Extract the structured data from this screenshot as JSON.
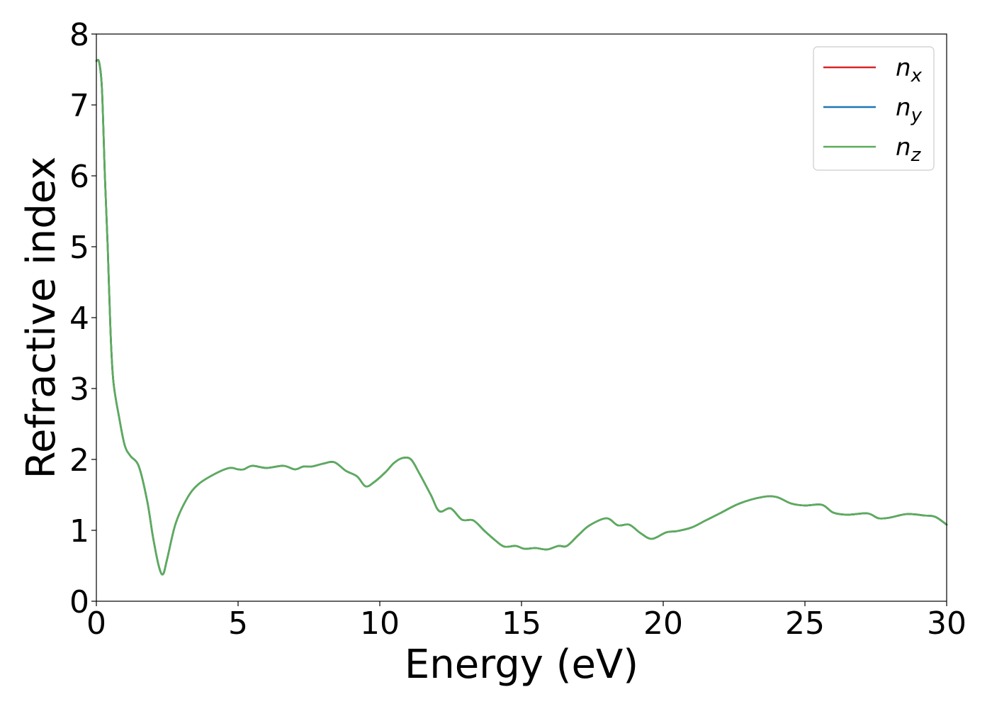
{
  "chart_data": {
    "type": "line",
    "title": "",
    "xlabel": "Energy (eV)",
    "ylabel": "Refractive index",
    "xlim": [
      0,
      30
    ],
    "ylim": [
      0,
      8
    ],
    "xticks": [
      "0",
      "5",
      "10",
      "15",
      "20",
      "25",
      "30"
    ],
    "yticks": [
      "0",
      "1",
      "2",
      "3",
      "4",
      "5",
      "6",
      "7",
      "8"
    ],
    "grid": false,
    "legend_position": "top-right",
    "legend": [
      {
        "base": "n",
        "sub": "x",
        "color": "#d62728"
      },
      {
        "base": "n",
        "sub": "y",
        "color": "#1f77b4"
      },
      {
        "base": "n",
        "sub": "z",
        "color": "#5aad5a"
      }
    ],
    "series": [
      {
        "sub": "x",
        "color": "#d62728",
        "points": [
          [
            0,
            7.62
          ],
          [
            0.1,
            7.6
          ],
          [
            0.2,
            7.2
          ],
          [
            0.3,
            6.0
          ],
          [
            0.4,
            5.0
          ],
          [
            0.5,
            3.8
          ],
          [
            0.6,
            3.1
          ],
          [
            0.8,
            2.6
          ],
          [
            1.0,
            2.2
          ],
          [
            1.2,
            2.05
          ],
          [
            1.5,
            1.9
          ],
          [
            1.8,
            1.4
          ],
          [
            2.0,
            0.9
          ],
          [
            2.2,
            0.5
          ],
          [
            2.35,
            0.38
          ],
          [
            2.5,
            0.6
          ],
          [
            2.8,
            1.1
          ],
          [
            3.2,
            1.45
          ],
          [
            3.6,
            1.65
          ],
          [
            4.2,
            1.8
          ],
          [
            4.7,
            1.88
          ],
          [
            5.0,
            1.86
          ],
          [
            5.2,
            1.86
          ],
          [
            5.5,
            1.91
          ],
          [
            6.0,
            1.88
          ],
          [
            6.6,
            1.91
          ],
          [
            7.0,
            1.86
          ],
          [
            7.3,
            1.9
          ],
          [
            7.6,
            1.9
          ],
          [
            8.0,
            1.94
          ],
          [
            8.4,
            1.96
          ],
          [
            8.8,
            1.84
          ],
          [
            9.2,
            1.76
          ],
          [
            9.5,
            1.62
          ],
          [
            9.8,
            1.68
          ],
          [
            10.2,
            1.82
          ],
          [
            10.5,
            1.95
          ],
          [
            10.8,
            2.02
          ],
          [
            11.1,
            2.0
          ],
          [
            11.4,
            1.8
          ],
          [
            11.8,
            1.5
          ],
          [
            12.1,
            1.27
          ],
          [
            12.5,
            1.31
          ],
          [
            12.9,
            1.15
          ],
          [
            13.3,
            1.14
          ],
          [
            13.7,
            0.99
          ],
          [
            14.1,
            0.85
          ],
          [
            14.4,
            0.77
          ],
          [
            14.8,
            0.78
          ],
          [
            15.1,
            0.74
          ],
          [
            15.5,
            0.75
          ],
          [
            15.9,
            0.73
          ],
          [
            16.3,
            0.78
          ],
          [
            16.6,
            0.78
          ],
          [
            17.0,
            0.93
          ],
          [
            17.4,
            1.07
          ],
          [
            18.0,
            1.17
          ],
          [
            18.4,
            1.07
          ],
          [
            18.8,
            1.08
          ],
          [
            19.2,
            0.96
          ],
          [
            19.6,
            0.88
          ],
          [
            20.1,
            0.97
          ],
          [
            20.5,
            0.99
          ],
          [
            21.0,
            1.04
          ],
          [
            21.5,
            1.14
          ],
          [
            22.0,
            1.24
          ],
          [
            22.7,
            1.38
          ],
          [
            23.5,
            1.47
          ],
          [
            24.0,
            1.47
          ],
          [
            24.5,
            1.38
          ],
          [
            25.0,
            1.35
          ],
          [
            25.6,
            1.36
          ],
          [
            26.0,
            1.25
          ],
          [
            26.5,
            1.22
          ],
          [
            27.2,
            1.24
          ],
          [
            27.6,
            1.17
          ],
          [
            28.0,
            1.18
          ],
          [
            28.6,
            1.23
          ],
          [
            29.2,
            1.21
          ],
          [
            29.6,
            1.19
          ],
          [
            30.0,
            1.08
          ]
        ]
      },
      {
        "sub": "y",
        "color": "#1f77b4",
        "points": [
          [
            0,
            7.62
          ],
          [
            0.1,
            7.6
          ],
          [
            0.2,
            7.2
          ],
          [
            0.3,
            6.0
          ],
          [
            0.4,
            5.0
          ],
          [
            0.5,
            3.8
          ],
          [
            0.6,
            3.1
          ],
          [
            0.8,
            2.6
          ],
          [
            1.0,
            2.2
          ],
          [
            1.2,
            2.05
          ],
          [
            1.5,
            1.9
          ],
          [
            1.8,
            1.4
          ],
          [
            2.0,
            0.9
          ],
          [
            2.2,
            0.5
          ],
          [
            2.35,
            0.38
          ],
          [
            2.5,
            0.6
          ],
          [
            2.8,
            1.1
          ],
          [
            3.2,
            1.45
          ],
          [
            3.6,
            1.65
          ],
          [
            4.2,
            1.8
          ],
          [
            4.7,
            1.88
          ],
          [
            5.0,
            1.86
          ],
          [
            5.2,
            1.86
          ],
          [
            5.5,
            1.91
          ],
          [
            6.0,
            1.88
          ],
          [
            6.6,
            1.91
          ],
          [
            7.0,
            1.86
          ],
          [
            7.3,
            1.9
          ],
          [
            7.6,
            1.9
          ],
          [
            8.0,
            1.94
          ],
          [
            8.4,
            1.96
          ],
          [
            8.8,
            1.84
          ],
          [
            9.2,
            1.76
          ],
          [
            9.5,
            1.62
          ],
          [
            9.8,
            1.68
          ],
          [
            10.2,
            1.82
          ],
          [
            10.5,
            1.95
          ],
          [
            10.8,
            2.02
          ],
          [
            11.1,
            2.0
          ],
          [
            11.4,
            1.8
          ],
          [
            11.8,
            1.5
          ],
          [
            12.1,
            1.27
          ],
          [
            12.5,
            1.31
          ],
          [
            12.9,
            1.15
          ],
          [
            13.3,
            1.14
          ],
          [
            13.7,
            0.99
          ],
          [
            14.1,
            0.85
          ],
          [
            14.4,
            0.77
          ],
          [
            14.8,
            0.78
          ],
          [
            15.1,
            0.74
          ],
          [
            15.5,
            0.75
          ],
          [
            15.9,
            0.73
          ],
          [
            16.3,
            0.78
          ],
          [
            16.6,
            0.78
          ],
          [
            17.0,
            0.93
          ],
          [
            17.4,
            1.07
          ],
          [
            18.0,
            1.17
          ],
          [
            18.4,
            1.07
          ],
          [
            18.8,
            1.08
          ],
          [
            19.2,
            0.96
          ],
          [
            19.6,
            0.88
          ],
          [
            20.1,
            0.97
          ],
          [
            20.5,
            0.99
          ],
          [
            21.0,
            1.04
          ],
          [
            21.5,
            1.14
          ],
          [
            22.0,
            1.24
          ],
          [
            22.7,
            1.38
          ],
          [
            23.5,
            1.47
          ],
          [
            24.0,
            1.47
          ],
          [
            24.5,
            1.38
          ],
          [
            25.0,
            1.35
          ],
          [
            25.6,
            1.36
          ],
          [
            26.0,
            1.25
          ],
          [
            26.5,
            1.22
          ],
          [
            27.2,
            1.24
          ],
          [
            27.6,
            1.17
          ],
          [
            28.0,
            1.18
          ],
          [
            28.6,
            1.23
          ],
          [
            29.2,
            1.21
          ],
          [
            29.6,
            1.19
          ],
          [
            30.0,
            1.08
          ]
        ]
      },
      {
        "sub": "z",
        "color": "#5aad5a",
        "points": [
          [
            0,
            7.62
          ],
          [
            0.1,
            7.6
          ],
          [
            0.2,
            7.2
          ],
          [
            0.3,
            6.0
          ],
          [
            0.4,
            5.0
          ],
          [
            0.5,
            3.8
          ],
          [
            0.6,
            3.1
          ],
          [
            0.8,
            2.6
          ],
          [
            1.0,
            2.2
          ],
          [
            1.2,
            2.05
          ],
          [
            1.5,
            1.9
          ],
          [
            1.8,
            1.4
          ],
          [
            2.0,
            0.9
          ],
          [
            2.2,
            0.5
          ],
          [
            2.35,
            0.38
          ],
          [
            2.5,
            0.6
          ],
          [
            2.8,
            1.1
          ],
          [
            3.2,
            1.45
          ],
          [
            3.6,
            1.65
          ],
          [
            4.2,
            1.8
          ],
          [
            4.7,
            1.88
          ],
          [
            5.0,
            1.86
          ],
          [
            5.2,
            1.86
          ],
          [
            5.5,
            1.91
          ],
          [
            6.0,
            1.88
          ],
          [
            6.6,
            1.91
          ],
          [
            7.0,
            1.86
          ],
          [
            7.3,
            1.9
          ],
          [
            7.6,
            1.9
          ],
          [
            8.0,
            1.94
          ],
          [
            8.4,
            1.96
          ],
          [
            8.8,
            1.84
          ],
          [
            9.2,
            1.76
          ],
          [
            9.5,
            1.62
          ],
          [
            9.8,
            1.68
          ],
          [
            10.2,
            1.82
          ],
          [
            10.5,
            1.95
          ],
          [
            10.8,
            2.02
          ],
          [
            11.1,
            2.0
          ],
          [
            11.4,
            1.8
          ],
          [
            11.8,
            1.5
          ],
          [
            12.1,
            1.27
          ],
          [
            12.5,
            1.31
          ],
          [
            12.9,
            1.15
          ],
          [
            13.3,
            1.14
          ],
          [
            13.7,
            0.99
          ],
          [
            14.1,
            0.85
          ],
          [
            14.4,
            0.77
          ],
          [
            14.8,
            0.78
          ],
          [
            15.1,
            0.74
          ],
          [
            15.5,
            0.75
          ],
          [
            15.9,
            0.73
          ],
          [
            16.3,
            0.78
          ],
          [
            16.6,
            0.78
          ],
          [
            17.0,
            0.93
          ],
          [
            17.4,
            1.07
          ],
          [
            18.0,
            1.17
          ],
          [
            18.4,
            1.07
          ],
          [
            18.8,
            1.08
          ],
          [
            19.2,
            0.96
          ],
          [
            19.6,
            0.88
          ],
          [
            20.1,
            0.97
          ],
          [
            20.5,
            0.99
          ],
          [
            21.0,
            1.04
          ],
          [
            21.5,
            1.14
          ],
          [
            22.0,
            1.24
          ],
          [
            22.7,
            1.38
          ],
          [
            23.5,
            1.47
          ],
          [
            24.0,
            1.47
          ],
          [
            24.5,
            1.38
          ],
          [
            25.0,
            1.35
          ],
          [
            25.6,
            1.36
          ],
          [
            26.0,
            1.25
          ],
          [
            26.5,
            1.22
          ],
          [
            27.2,
            1.24
          ],
          [
            27.6,
            1.17
          ],
          [
            28.0,
            1.18
          ],
          [
            28.6,
            1.23
          ],
          [
            29.2,
            1.21
          ],
          [
            29.6,
            1.19
          ],
          [
            30.0,
            1.08
          ]
        ]
      }
    ]
  }
}
